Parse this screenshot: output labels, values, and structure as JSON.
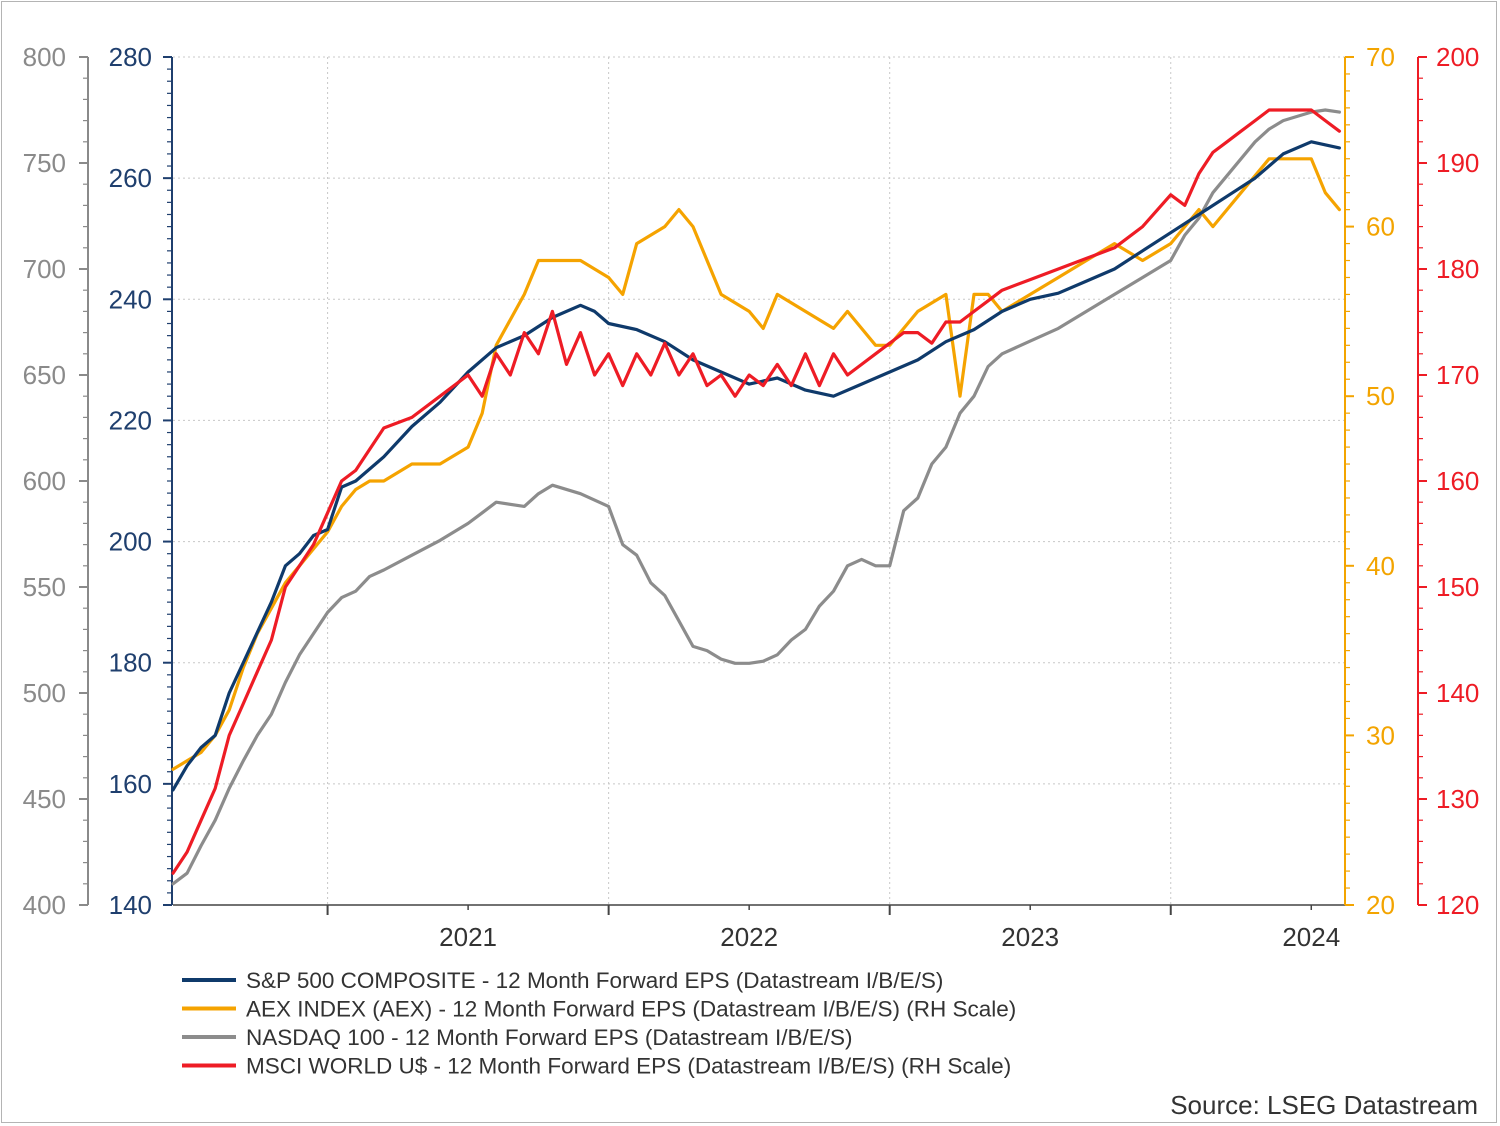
{
  "chart_data": {
    "type": "line",
    "title": "",
    "source": "Source: LSEG Datastream",
    "x_ticks": [
      "2021",
      "2022",
      "2023",
      "2024"
    ],
    "xlim": [
      2020.45,
      2024.62
    ],
    "grid": true,
    "legend_position": "bottom",
    "axes": [
      {
        "id": "left_outer",
        "side": "left",
        "color": "#8a8a8a",
        "ylim": [
          400,
          800
        ],
        "ticks": [
          400,
          450,
          500,
          550,
          600,
          650,
          700,
          750,
          800
        ],
        "tick_labels": [
          "400",
          "450",
          "500",
          "550",
          "600",
          "650",
          "700",
          "750",
          "800"
        ]
      },
      {
        "id": "left_inner",
        "side": "left",
        "color": "#1f3f6e",
        "ylim": [
          140,
          280
        ],
        "ticks": [
          140,
          160,
          180,
          200,
          220,
          240,
          260,
          280
        ],
        "tick_labels": [
          "140",
          "160",
          "180",
          "200",
          "220",
          "240",
          "260",
          "280"
        ]
      },
      {
        "id": "right_inner",
        "side": "right",
        "color": "#f3a400",
        "ylim": [
          20,
          70
        ],
        "ticks": [
          20,
          30,
          40,
          50,
          60,
          70
        ],
        "tick_labels": [
          "20",
          "30",
          "40",
          "50",
          "60",
          "70"
        ]
      },
      {
        "id": "right_outer",
        "side": "right",
        "color": "#ee1c25",
        "ylim": [
          120,
          200
        ],
        "ticks": [
          120,
          130,
          140,
          150,
          160,
          170,
          180,
          190,
          200
        ],
        "tick_labels": [
          "120",
          "130",
          "140",
          "150",
          "160",
          "170",
          "180",
          "190",
          "200"
        ]
      }
    ],
    "series": [
      {
        "name": "S&P 500 COMPOSITE - 12 Month Forward EPS (Datastream I/B/E/S)",
        "axis": "left_inner",
        "color": "#0f3a6b",
        "x": [
          2020.45,
          2020.5,
          2020.55,
          2020.6,
          2020.65,
          2020.7,
          2020.75,
          2020.8,
          2020.85,
          2020.9,
          2020.95,
          2021.0,
          2021.05,
          2021.1,
          2021.2,
          2021.3,
          2021.4,
          2021.5,
          2021.6,
          2021.7,
          2021.8,
          2021.9,
          2021.95,
          2022.0,
          2022.1,
          2022.2,
          2022.3,
          2022.4,
          2022.5,
          2022.6,
          2022.7,
          2022.8,
          2022.9,
          2023.0,
          2023.1,
          2023.2,
          2023.3,
          2023.4,
          2023.5,
          2023.6,
          2023.7,
          2023.8,
          2023.9,
          2024.0,
          2024.1,
          2024.2,
          2024.3,
          2024.4,
          2024.5,
          2024.6
        ],
        "y": [
          159,
          163,
          166,
          168,
          175,
          180,
          185,
          190,
          196,
          198,
          201,
          202,
          209,
          210,
          214,
          219,
          223,
          228,
          232,
          234,
          237,
          239,
          238,
          236,
          235,
          233,
          230,
          228,
          226,
          227,
          225,
          224,
          226,
          228,
          230,
          233,
          235,
          238,
          240,
          241,
          243,
          245,
          248,
          251,
          254,
          257,
          260,
          264,
          266,
          265
        ]
      },
      {
        "name": "AEX INDEX (AEX) - 12 Month Forward EPS (Datastream I/B/E/S) (RH Scale)",
        "axis": "right_inner",
        "color": "#f5a300",
        "x": [
          2020.45,
          2020.5,
          2020.55,
          2020.6,
          2020.65,
          2020.7,
          2020.75,
          2020.8,
          2020.85,
          2020.9,
          2020.95,
          2021.0,
          2021.05,
          2021.1,
          2021.15,
          2021.2,
          2021.3,
          2021.4,
          2021.5,
          2021.55,
          2021.6,
          2021.7,
          2021.75,
          2021.8,
          2021.9,
          2022.0,
          2022.05,
          2022.1,
          2022.2,
          2022.25,
          2022.3,
          2022.4,
          2022.5,
          2022.55,
          2022.6,
          2022.7,
          2022.8,
          2022.85,
          2022.9,
          2022.95,
          2023.0,
          2023.05,
          2023.1,
          2023.2,
          2023.25,
          2023.3,
          2023.35,
          2023.4,
          2023.5,
          2023.6,
          2023.7,
          2023.8,
          2023.9,
          2024.0,
          2024.05,
          2024.1,
          2024.15,
          2024.2,
          2024.25,
          2024.3,
          2024.35,
          2024.4,
          2024.45,
          2024.5,
          2024.55,
          2024.6
        ],
        "y": [
          28,
          28.5,
          29,
          30,
          31.5,
          34,
          36,
          37.5,
          39,
          40,
          41,
          42,
          43.5,
          44.5,
          45,
          45,
          46,
          46,
          47,
          49,
          53,
          56,
          58,
          58,
          58,
          57,
          56,
          59,
          60,
          61,
          60,
          56,
          55,
          54,
          56,
          55,
          54,
          55,
          54,
          53,
          53,
          54,
          55,
          56,
          50,
          56,
          56,
          55,
          56,
          57,
          58,
          59,
          58,
          59,
          60,
          61,
          60,
          61,
          62,
          63,
          64,
          64,
          64,
          64,
          62,
          61
        ]
      },
      {
        "name": "NASDAQ 100 - 12 Month Forward EPS (Datastream I/B/E/S)",
        "axis": "left_outer",
        "color": "#8c8c8c",
        "x": [
          2020.45,
          2020.5,
          2020.55,
          2020.6,
          2020.65,
          2020.7,
          2020.75,
          2020.8,
          2020.85,
          2020.9,
          2020.95,
          2021.0,
          2021.05,
          2021.1,
          2021.15,
          2021.2,
          2021.3,
          2021.4,
          2021.5,
          2021.55,
          2021.6,
          2021.7,
          2021.75,
          2021.8,
          2021.9,
          2022.0,
          2022.05,
          2022.1,
          2022.15,
          2022.2,
          2022.25,
          2022.3,
          2022.35,
          2022.4,
          2022.45,
          2022.5,
          2022.55,
          2022.6,
          2022.65,
          2022.7,
          2022.75,
          2022.8,
          2022.85,
          2022.9,
          2022.95,
          2023.0,
          2023.05,
          2023.1,
          2023.15,
          2023.2,
          2023.25,
          2023.3,
          2023.35,
          2023.4,
          2023.5,
          2023.6,
          2023.7,
          2023.8,
          2023.9,
          2024.0,
          2024.05,
          2024.1,
          2024.15,
          2024.2,
          2024.25,
          2024.3,
          2024.35,
          2024.4,
          2024.45,
          2024.5,
          2024.55,
          2024.6
        ],
        "y": [
          410,
          415,
          428,
          440,
          455,
          468,
          480,
          490,
          505,
          518,
          528,
          538,
          545,
          548,
          555,
          558,
          565,
          572,
          580,
          585,
          590,
          588,
          594,
          598,
          594,
          588,
          570,
          565,
          552,
          546,
          534,
          522,
          520,
          516,
          514,
          514,
          515,
          518,
          525,
          530,
          541,
          548,
          560,
          563,
          560,
          560,
          586,
          592,
          608,
          616,
          632,
          640,
          654,
          660,
          666,
          672,
          680,
          688,
          696,
          704,
          716,
          724,
          736,
          744,
          752,
          760,
          766,
          770,
          772,
          774,
          775,
          774
        ]
      },
      {
        "name": "MSCI WORLD U$ - 12 Month Forward EPS (Datastream I/B/E/S) (RH Scale)",
        "axis": "right_outer",
        "color": "#ee1c25",
        "x": [
          2020.45,
          2020.5,
          2020.55,
          2020.6,
          2020.65,
          2020.7,
          2020.75,
          2020.8,
          2020.85,
          2020.9,
          2020.95,
          2021.0,
          2021.05,
          2021.1,
          2021.15,
          2021.2,
          2021.3,
          2021.4,
          2021.5,
          2021.55,
          2021.6,
          2021.65,
          2021.7,
          2021.75,
          2021.8,
          2021.85,
          2021.9,
          2021.95,
          2022.0,
          2022.05,
          2022.1,
          2022.15,
          2022.2,
          2022.25,
          2022.3,
          2022.35,
          2022.4,
          2022.45,
          2022.5,
          2022.55,
          2022.6,
          2022.65,
          2022.7,
          2022.75,
          2022.8,
          2022.85,
          2022.9,
          2022.95,
          2023.0,
          2023.05,
          2023.1,
          2023.15,
          2023.2,
          2023.25,
          2023.3,
          2023.35,
          2023.4,
          2023.5,
          2023.6,
          2023.7,
          2023.8,
          2023.9,
          2024.0,
          2024.05,
          2024.1,
          2024.15,
          2024.2,
          2024.25,
          2024.3,
          2024.35,
          2024.4,
          2024.45,
          2024.5,
          2024.55,
          2024.6
        ],
        "y": [
          123,
          125,
          128,
          131,
          136,
          139,
          142,
          145,
          150,
          152,
          154,
          157,
          160,
          161,
          163,
          165,
          166,
          168,
          170,
          168,
          172,
          170,
          174,
          172,
          176,
          171,
          174,
          170,
          172,
          169,
          172,
          170,
          173,
          170,
          172,
          169,
          170,
          168,
          170,
          169,
          171,
          169,
          172,
          169,
          172,
          170,
          171,
          172,
          173,
          174,
          174,
          173,
          175,
          175,
          176,
          177,
          178,
          179,
          180,
          181,
          182,
          184,
          187,
          186,
          189,
          191,
          192,
          193,
          194,
          195,
          195,
          195,
          195,
          194,
          193
        ]
      }
    ]
  },
  "legend": [
    {
      "label": "S&P 500 COMPOSITE - 12 Month Forward EPS (Datastream I/B/E/S)",
      "color": "#0f3a6b"
    },
    {
      "label": "AEX INDEX (AEX) - 12 Month Forward EPS (Datastream I/B/E/S) (RH Scale)",
      "color": "#f5a300"
    },
    {
      "label": "NASDAQ 100 - 12 Month Forward EPS (Datastream I/B/E/S)",
      "color": "#8c8c8c"
    },
    {
      "label": "MSCI WORLD U$ - 12 Month Forward EPS (Datastream I/B/E/S) (RH Scale)",
      "color": "#ee1c25"
    }
  ]
}
